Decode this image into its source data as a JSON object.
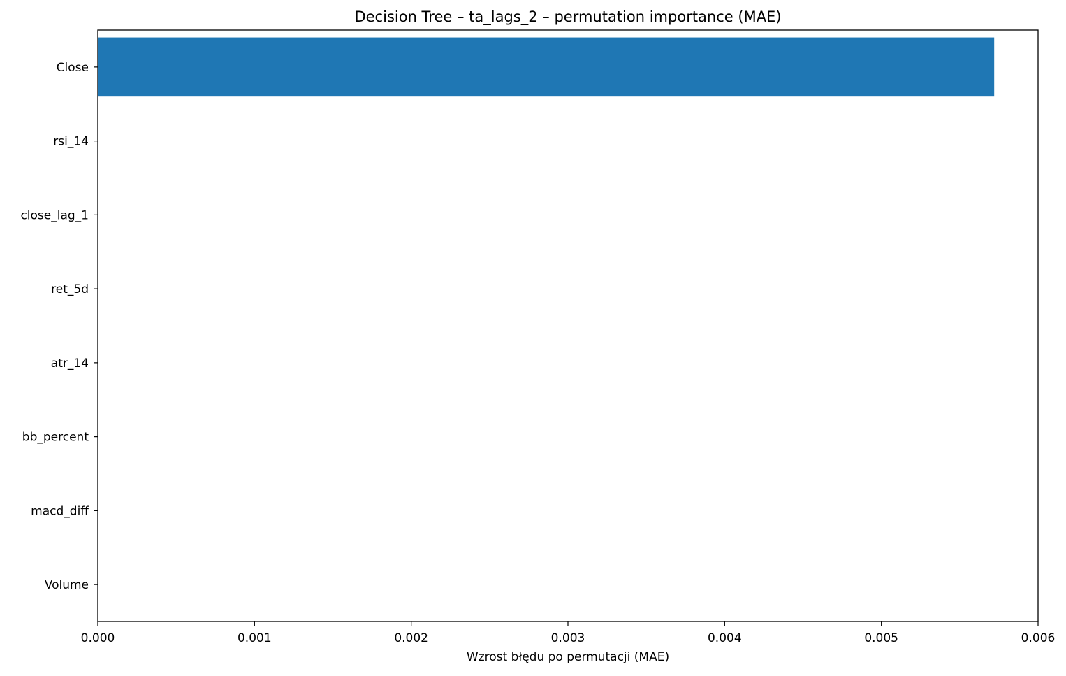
{
  "chart_data": {
    "type": "bar",
    "orientation": "horizontal",
    "title": "Decision Tree – ta_lags_2 – permutation importance (MAE)",
    "xlabel": "Wzrost błędu po permutacji (MAE)",
    "ylabel": "",
    "xlim": [
      0,
      0.006
    ],
    "xticks": [
      "0.000",
      "0.001",
      "0.002",
      "0.003",
      "0.004",
      "0.005",
      "0.006"
    ],
    "categories": [
      "Close",
      "rsi_14",
      "close_lag_1",
      "ret_5d",
      "atr_14",
      "bb_percent",
      "macd_diff",
      "Volume"
    ],
    "values": [
      0.00572,
      0,
      0,
      0,
      0,
      0,
      0,
      0
    ],
    "bar_color": "#1f77b4",
    "grid": false
  }
}
